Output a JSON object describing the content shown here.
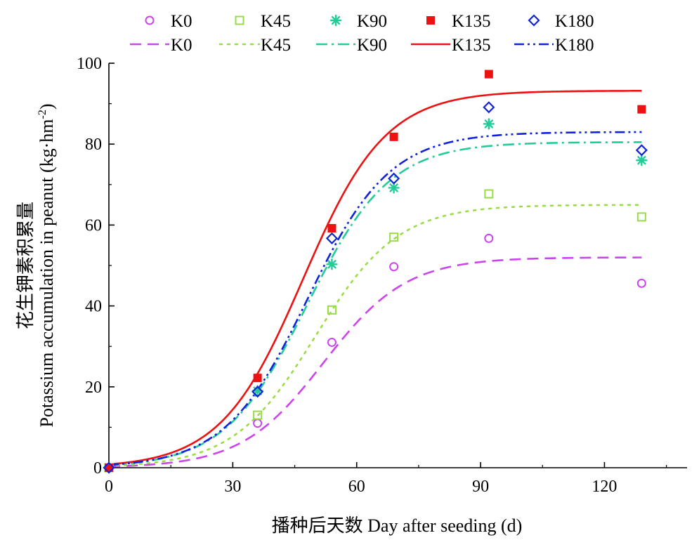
{
  "chart_data": {
    "type": "scatter",
    "title": "",
    "xlabel": "播种后天数 Day after seeding (d)",
    "ylabel_cn": "花生钾素积累量",
    "ylabel_en": "Potassium accumulation in peanut (kg·hm",
    "ylabel_unit_sup": "-2",
    "ylabel_unit_close": ")",
    "xlim": [
      0,
      140
    ],
    "ylim": [
      0,
      100
    ],
    "xticks": [
      0,
      30,
      60,
      90,
      120
    ],
    "yticks": [
      0,
      20,
      40,
      60,
      80,
      100
    ],
    "legend_position": "top",
    "x": [
      0,
      36,
      54,
      69,
      92,
      129
    ],
    "series": [
      {
        "name": "K0",
        "color": "#cc44ee",
        "marker": "circle",
        "line": "dash",
        "values": [
          0,
          11,
          31,
          49.7,
          56.7,
          45.6
        ],
        "fit": {
          "A": 52,
          "k": 0.1,
          "t0": 52
        }
      },
      {
        "name": "K45",
        "color": "#99dd44",
        "marker": "square-open",
        "line": "dot",
        "values": [
          0,
          13,
          39,
          57,
          67.7,
          62
        ],
        "fit": {
          "A": 65,
          "k": 0.1,
          "t0": 50
        }
      },
      {
        "name": "K90",
        "color": "#22cc99",
        "marker": "asterisk",
        "line": "dashdot",
        "values": [
          0,
          19,
          50.3,
          69.2,
          85,
          76
        ],
        "fit": {
          "A": 80.5,
          "k": 0.1,
          "t0": 48
        }
      },
      {
        "name": "K135",
        "color": "#ee1111",
        "marker": "square-filled",
        "line": "solid",
        "values": [
          0,
          22.2,
          59.2,
          81.8,
          97.3,
          88.6
        ],
        "fit": {
          "A": 93.2,
          "k": 0.1,
          "t0": 47
        }
      },
      {
        "name": "K180",
        "color": "#1122dd",
        "marker": "diamond",
        "line": "dashdotdot",
        "values": [
          0,
          18.8,
          56.7,
          71.5,
          89.1,
          78.5
        ],
        "fit": {
          "A": 83,
          "k": 0.1,
          "t0": 48
        }
      }
    ]
  }
}
